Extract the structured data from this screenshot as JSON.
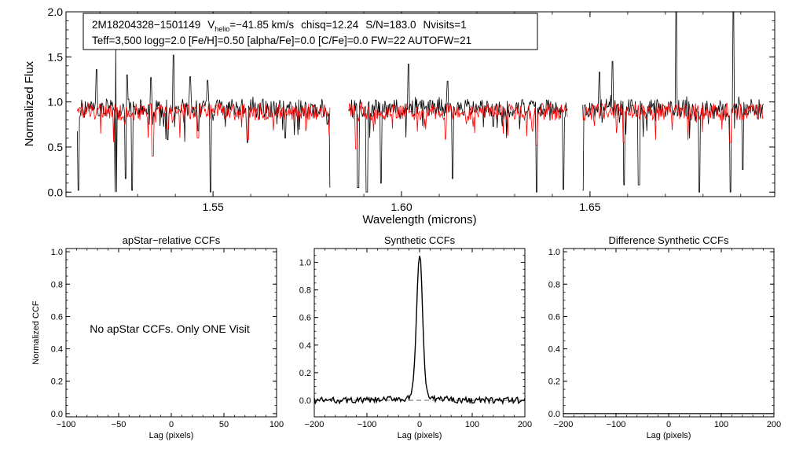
{
  "colors": {
    "observed": "#000000",
    "model": "#ff0000",
    "zero_line": "#666666",
    "axis": "#000000"
  },
  "header": {
    "star_id": "2M18204328−1501149",
    "vhelio_symbol": "V",
    "vhelio_sub": "helio",
    "vhelio_value": "=−41.85 km/s",
    "chisq": "chisq=12.24",
    "snr": "S/N=183.0",
    "nvisits": "Nvisits=1",
    "params": "Teff=3,500 logg=2.0 [Fe/H]=0.50 [alpha/Fe]=0.0 [C/Fe]=0.0 FW=22 AUTOFW=21"
  },
  "chart_data": [
    {
      "id": "spectrum",
      "type": "line",
      "title": "",
      "xlabel": "Wavelength (microns)",
      "ylabel": "Normalized Flux",
      "xlim": [
        1.511,
        1.699
      ],
      "ylim": [
        -0.05,
        2.0
      ],
      "xticks": [
        1.55,
        1.6,
        1.65
      ],
      "xtick_labels": [
        "1.55",
        "1.60",
        "1.65"
      ],
      "yticks": [
        0.0,
        0.5,
        1.0,
        1.5,
        2.0
      ],
      "ytick_labels": [
        "0.0",
        "0.5",
        "1.0",
        "1.5",
        "2.0"
      ],
      "detector_segments": [
        [
          1.514,
          1.581
        ],
        [
          1.586,
          1.644
        ],
        [
          1.648,
          1.696
        ]
      ],
      "series": [
        {
          "name": "observed",
          "color": "#000000",
          "baseline": 0.93,
          "noise": 0.13,
          "peaks": [
            [
              1.5191,
              1.36
            ],
            [
              1.5242,
              1.62
            ],
            [
              1.5272,
              1.3
            ],
            [
              1.5336,
              1.27
            ],
            [
              1.5395,
              1.52
            ],
            [
              1.544,
              1.28
            ],
            [
              1.5485,
              1.24
            ],
            [
              1.6018,
              1.42
            ],
            [
              1.6122,
              1.23
            ],
            [
              1.6525,
              1.33
            ],
            [
              1.656,
              1.45
            ],
            [
              1.6728,
              2.0
            ],
            [
              1.688,
              2.0
            ]
          ],
          "dips": [
            [
              1.5143,
              0.02
            ],
            [
              1.5242,
              0.0
            ],
            [
              1.5268,
              0.15
            ],
            [
              1.5285,
              0.02
            ],
            [
              1.538,
              0.58
            ],
            [
              1.546,
              0.68
            ],
            [
              1.5493,
              0.0
            ],
            [
              1.5591,
              0.55
            ],
            [
              1.5692,
              0.6
            ],
            [
              1.5811,
              0.05
            ],
            [
              1.5885,
              0.05
            ],
            [
              1.5908,
              0.0
            ],
            [
              1.5945,
              0.1
            ],
            [
              1.6018,
              0.05
            ],
            [
              1.6135,
              0.15
            ],
            [
              1.6358,
              0.0
            ],
            [
              1.643,
              0.03
            ],
            [
              1.648,
              0.02
            ],
            [
              1.659,
              0.08
            ],
            [
              1.663,
              0.08
            ],
            [
              1.6728,
              0.1
            ],
            [
              1.679,
              0.0
            ],
            [
              1.6872,
              0.0
            ],
            [
              1.688,
              0.0
            ],
            [
              1.6905,
              0.25
            ]
          ]
        },
        {
          "name": "synthetic model",
          "color": "#ff0000",
          "baseline": 0.89,
          "noise": 0.12,
          "dips": [
            [
              1.534,
              0.4
            ],
            [
              1.538,
              0.7
            ],
            [
              1.546,
              0.6
            ],
            [
              1.5592,
              0.58
            ],
            [
              1.588,
              0.48
            ],
            [
              1.6358,
              0.52
            ],
            [
              1.659,
              0.55
            ],
            [
              1.6872,
              0.55
            ]
          ]
        }
      ]
    },
    {
      "id": "apstar_ccf",
      "type": "line",
      "title": "apStar−relative CCFs",
      "xlabel": "Lag (pixels)",
      "ylabel": "Normalized CCF",
      "xlim": [
        -100,
        100
      ],
      "ylim": [
        -0.02,
        1.02
      ],
      "xticks": [
        -100,
        -50,
        0,
        50,
        100
      ],
      "xtick_labels": [
        "−100",
        "−50",
        "0",
        "50",
        "100"
      ],
      "yticks": [
        0.0,
        0.2,
        0.4,
        0.6,
        0.8,
        1.0
      ],
      "ytick_labels": [
        "0.0",
        "0.2",
        "0.4",
        "0.6",
        "0.8",
        "1.0"
      ],
      "annotation": "No apStar CCFs.  Only ONE Visit",
      "series": []
    },
    {
      "id": "synthetic_ccf",
      "type": "line",
      "title": "Synthetic CCFs",
      "xlabel": "Lag (pixels)",
      "ylabel": "",
      "xlim": [
        -200,
        200
      ],
      "ylim": [
        -0.12,
        1.1
      ],
      "xticks": [
        -200,
        -100,
        0,
        100,
        200
      ],
      "xtick_labels": [
        "−200",
        "−100",
        "0",
        "100",
        "200"
      ],
      "yticks": [
        0.0,
        0.2,
        0.4,
        0.6,
        0.8,
        1.0
      ],
      "ytick_labels": [
        "0.0",
        "0.2",
        "0.4",
        "0.6",
        "0.8",
        "1.0"
      ],
      "zero_line": 0.0,
      "series": [
        {
          "name": "ccf",
          "color": "#000000",
          "peak_lag": 0,
          "peak_value": 1.0,
          "peak_width": 5.5,
          "wing_amp": 0.06,
          "wing_width": 30,
          "noise": 0.022
        }
      ]
    },
    {
      "id": "difference_ccf",
      "type": "line",
      "title": "Difference Synthetic CCFs",
      "xlabel": "Lag (pixels)",
      "ylabel": "",
      "xlim": [
        -200,
        200
      ],
      "ylim": [
        -0.02,
        1.02
      ],
      "xticks": [
        -200,
        -100,
        0,
        100,
        200
      ],
      "xtick_labels": [
        "−200",
        "−100",
        "0",
        "100",
        "200"
      ],
      "yticks": [
        0.0,
        0.2,
        0.4,
        0.6,
        0.8,
        1.0
      ],
      "ytick_labels": [
        "0.0",
        "0.2",
        "0.4",
        "0.6",
        "0.8",
        "1.0"
      ],
      "series": [
        {
          "name": "difference",
          "color": "#000000",
          "values_constant": 0.0
        }
      ]
    }
  ]
}
